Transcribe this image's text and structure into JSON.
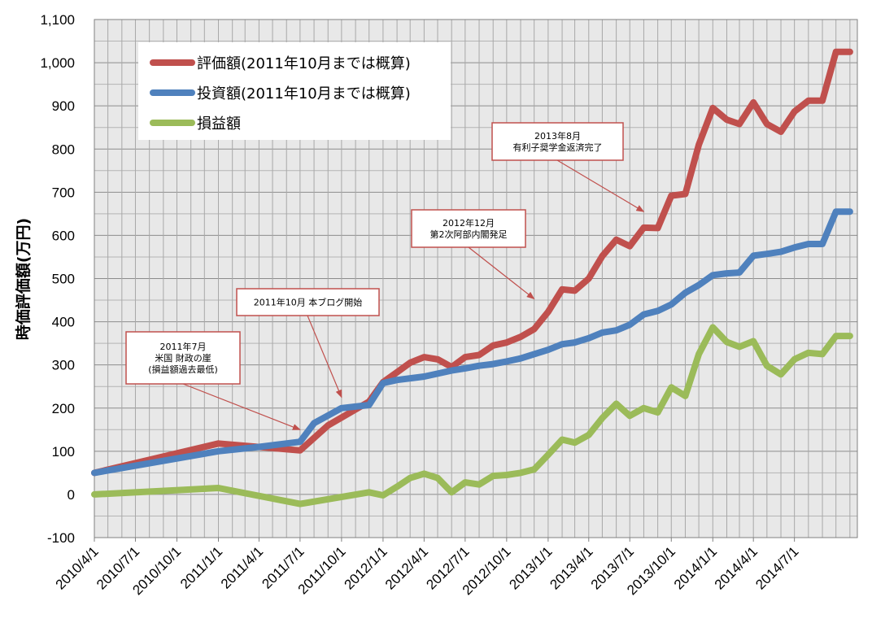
{
  "chart_data": {
    "type": "line",
    "ylabel": "時価評価額(万円)",
    "ylim": [
      -100,
      1100
    ],
    "y_ticks": [
      "-100",
      "0",
      "100",
      "200",
      "300",
      "400",
      "500",
      "600",
      "700",
      "800",
      "900",
      "1,000",
      "1,100"
    ],
    "x_ticks": [
      "2010/4/1",
      "2010/7/1",
      "2010/10/1",
      "2011/1/1",
      "2011/4/1",
      "2011/7/1",
      "2011/10/1",
      "2012/1/1",
      "2012/4/1",
      "2012/7/1",
      "2012/10/1",
      "2013/1/1",
      "2013/4/1",
      "2013/7/1",
      "2013/10/1",
      "2014/1/1",
      "2014/4/1",
      "2014/7/1"
    ],
    "grid": true,
    "legend_position": "top-left",
    "series": [
      {
        "name": "評価額(2011年10月までは概算)",
        "color": "#c0504d",
        "x": [
          "2010/4/1",
          "2011/1/1",
          "2011/7/1",
          "2011/9/1",
          "2011/12/1",
          "2012/1/1",
          "2012/2/1",
          "2012/3/1",
          "2012/4/1",
          "2012/5/1",
          "2012/6/1",
          "2012/7/1",
          "2012/8/1",
          "2012/9/1",
          "2012/10/1",
          "2012/11/1",
          "2012/12/1",
          "2013/1/1",
          "2013/2/1",
          "2013/3/1",
          "2013/4/1",
          "2013/5/1",
          "2013/6/1",
          "2013/7/1",
          "2013/8/1",
          "2013/9/1",
          "2013/10/1",
          "2013/11/1",
          "2013/12/1",
          "2014/1/1",
          "2014/2/1",
          "2014/3/1",
          "2014/4/1",
          "2014/5/1",
          "2014/6/1",
          "2014/7/1",
          "2014/8/1",
          "2014/9/1",
          "2014/10/1",
          "2014/11/1"
        ],
        "values": [
          50,
          118,
          102,
          160,
          215,
          260,
          283,
          305,
          318,
          313,
          295,
          318,
          323,
          345,
          352,
          365,
          383,
          423,
          475,
          472,
          500,
          552,
          590,
          575,
          618,
          617,
          692,
          696,
          810,
          895,
          868,
          858,
          908,
          858,
          840,
          887,
          912,
          912,
          1025,
          1025
        ]
      },
      {
        "name": "投資額(2011年10月までは概算)",
        "color": "#4f81bd",
        "x": [
          "2010/4/1",
          "2011/1/1",
          "2011/4/1",
          "2011/7/1",
          "2011/8/1",
          "2011/10/1",
          "2011/12/1",
          "2012/1/1",
          "2012/2/1",
          "2012/4/1",
          "2012/6/1",
          "2012/7/1",
          "2012/8/1",
          "2012/9/1",
          "2012/10/1",
          "2012/11/1",
          "2012/12/1",
          "2013/1/1",
          "2013/2/1",
          "2013/3/1",
          "2013/4/1",
          "2013/5/1",
          "2013/6/1",
          "2013/7/1",
          "2013/8/1",
          "2013/9/1",
          "2013/10/1",
          "2013/11/1",
          "2013/12/1",
          "2014/1/1",
          "2014/2/1",
          "2014/3/1",
          "2014/4/1",
          "2014/5/1",
          "2014/6/1",
          "2014/7/1",
          "2014/8/1",
          "2014/9/1",
          "2014/10/1",
          "2014/11/1"
        ],
        "values": [
          50,
          100,
          110,
          122,
          165,
          200,
          207,
          258,
          265,
          273,
          287,
          292,
          298,
          302,
          308,
          315,
          325,
          335,
          348,
          352,
          362,
          375,
          380,
          393,
          417,
          425,
          440,
          467,
          485,
          508,
          512,
          514,
          553,
          557,
          562,
          572,
          580,
          580,
          655,
          655
        ]
      },
      {
        "name": "損益額",
        "color": "#9bbb59",
        "x": [
          "2010/4/1",
          "2011/1/1",
          "2011/7/1",
          "2011/12/1",
          "2012/1/1",
          "2012/2/1",
          "2012/3/1",
          "2012/4/1",
          "2012/5/1",
          "2012/6/1",
          "2012/7/1",
          "2012/8/1",
          "2012/9/1",
          "2012/10/1",
          "2012/11/1",
          "2012/12/1",
          "2013/1/1",
          "2013/2/1",
          "2013/3/1",
          "2013/4/1",
          "2013/5/1",
          "2013/6/1",
          "2013/7/1",
          "2013/8/1",
          "2013/9/1",
          "2013/10/1",
          "2013/11/1",
          "2013/12/1",
          "2014/1/1",
          "2014/2/1",
          "2014/3/1",
          "2014/4/1",
          "2014/5/1",
          "2014/6/1",
          "2014/7/1",
          "2014/8/1",
          "2014/9/1",
          "2014/10/1",
          "2014/11/1"
        ],
        "values": [
          0,
          15,
          -22,
          5,
          -2,
          18,
          38,
          48,
          38,
          5,
          28,
          23,
          43,
          45,
          50,
          58,
          92,
          127,
          120,
          138,
          177,
          210,
          182,
          200,
          190,
          248,
          228,
          325,
          387,
          353,
          342,
          355,
          298,
          278,
          313,
          328,
          325,
          367,
          367
        ]
      }
    ],
    "annotations": [
      {
        "id": "jul2011",
        "lines": [
          "2011年7月",
          "米国 財政の崖",
          "(損益額過去最低)"
        ],
        "target": {
          "x": "2011/7/1",
          "y": 150
        }
      },
      {
        "id": "oct2011",
        "lines": [
          "2011年10月 本ブログ開始"
        ],
        "target": {
          "x": "2011/10/1",
          "y": 225
        }
      },
      {
        "id": "dec2012",
        "lines": [
          "2012年12月",
          "第2次阿部内閣発足"
        ],
        "target": {
          "x": "2012/12/1",
          "y": 453
        }
      },
      {
        "id": "aug2013",
        "lines": [
          "2013年8月",
          "有利子奨学金返済完了"
        ],
        "target": {
          "x": "2013/8/1",
          "y": 655
        }
      }
    ]
  }
}
